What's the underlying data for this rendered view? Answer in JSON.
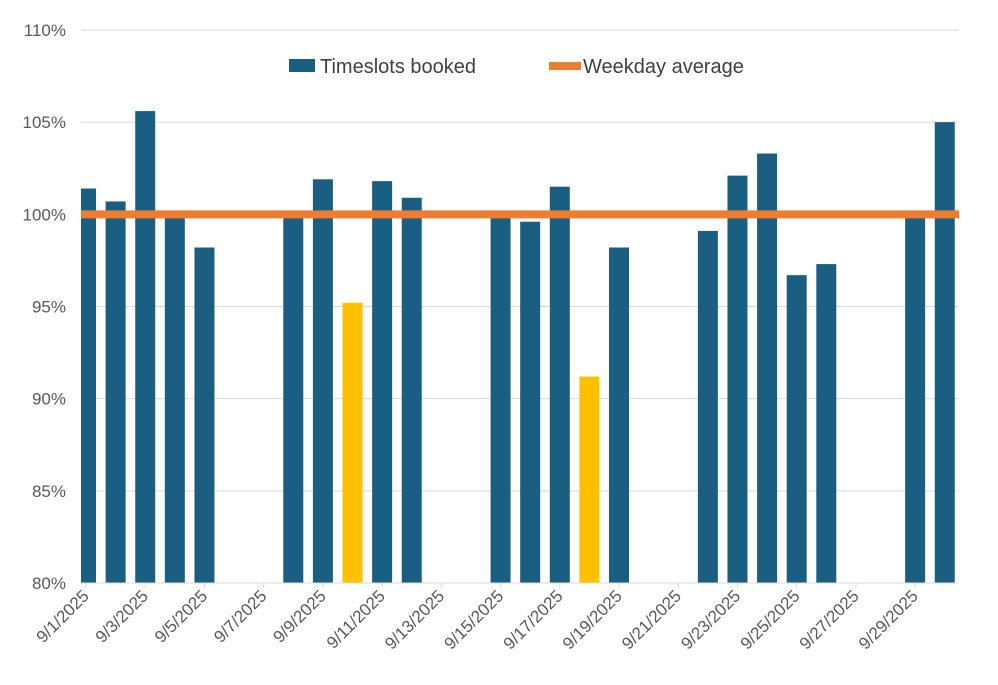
{
  "chart_data": {
    "type": "bar",
    "title": "",
    "xlabel": "",
    "ylabel": "",
    "ylim": [
      80,
      110
    ],
    "y_ticks": [
      "80%",
      "85%",
      "90%",
      "95%",
      "100%",
      "105%",
      "110%"
    ],
    "y_tick_values": [
      80,
      85,
      90,
      95,
      100,
      105,
      110
    ],
    "x_tick_labels": [
      "9/1/2025",
      "9/3/2025",
      "9/5/2025",
      "9/7/2025",
      "9/9/2025",
      "9/11/2025",
      "9/13/2025",
      "9/15/2025",
      "9/17/2025",
      "9/19/2025",
      "9/21/2025",
      "9/23/2025",
      "9/25/2025",
      "9/27/2025",
      "9/29/2025"
    ],
    "x_tick_dates": [
      "9/1/2025",
      "9/3/2025",
      "9/5/2025",
      "9/7/2025",
      "9/9/2025",
      "9/11/2025",
      "9/13/2025",
      "9/15/2025",
      "9/17/2025",
      "9/19/2025",
      "9/21/2025",
      "9/23/2025",
      "9/25/2025",
      "9/27/2025",
      "9/29/2025"
    ],
    "categories": [
      "9/1/2025",
      "9/2/2025",
      "9/3/2025",
      "9/4/2025",
      "9/5/2025",
      "9/6/2025",
      "9/7/2025",
      "9/8/2025",
      "9/9/2025",
      "9/10/2025",
      "9/11/2025",
      "9/12/2025",
      "9/13/2025",
      "9/14/2025",
      "9/15/2025",
      "9/16/2025",
      "9/17/2025",
      "9/18/2025",
      "9/19/2025",
      "9/20/2025",
      "9/21/2025",
      "9/22/2025",
      "9/23/2025",
      "9/24/2025",
      "9/25/2025",
      "9/26/2025",
      "9/27/2025",
      "9/28/2025",
      "9/29/2025",
      "9/30/2025"
    ],
    "series": [
      {
        "name": "Timeslots booked",
        "color": "#1a5e82",
        "highlight_color": "#ffc000",
        "values": [
          101.4,
          100.7,
          105.6,
          99.9,
          98.2,
          null,
          null,
          99.9,
          101.9,
          95.2,
          101.8,
          100.9,
          null,
          null,
          99.9,
          99.6,
          101.5,
          91.2,
          98.2,
          null,
          null,
          99.1,
          102.1,
          103.3,
          96.7,
          97.3,
          null,
          null,
          99.9,
          105.0
        ],
        "highlighted": [
          "9/10/2025",
          "9/18/2025"
        ]
      },
      {
        "name": "Weekday average",
        "color": "#ed7d31",
        "value": 100
      }
    ],
    "legend": "top-center",
    "grid": true
  }
}
